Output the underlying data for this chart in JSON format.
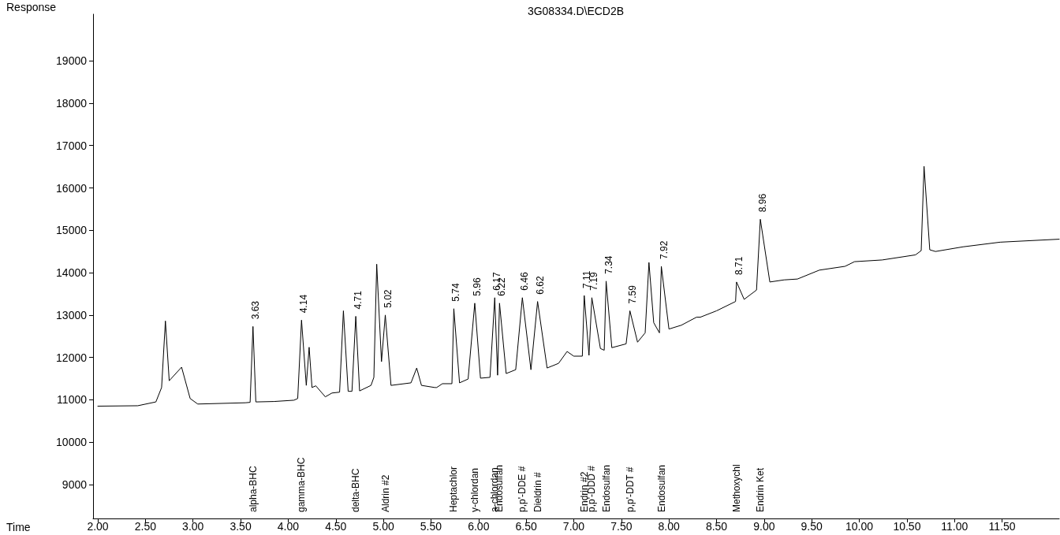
{
  "chart_data": {
    "type": "line",
    "title": "3G08334.D\\ECD2B",
    "xlabel": "Time",
    "ylabel": "Response",
    "x": [
      2.0,
      2.42,
      2.61,
      2.67,
      2.71,
      2.75,
      2.88,
      2.97,
      3.05,
      3.55,
      3.6,
      3.63,
      3.66,
      3.85,
      4.06,
      4.1,
      4.14,
      4.19,
      4.22,
      4.25,
      4.29,
      4.39,
      4.46,
      4.54,
      4.58,
      4.63,
      4.67,
      4.71,
      4.75,
      4.87,
      4.9,
      4.93,
      4.98,
      5.02,
      5.08,
      5.29,
      5.35,
      5.4,
      5.54,
      5.56,
      5.62,
      5.72,
      5.74,
      5.8,
      5.89,
      5.96,
      6.02,
      6.12,
      6.17,
      6.2,
      6.22,
      6.29,
      6.39,
      6.46,
      6.55,
      6.62,
      6.72,
      6.84,
      6.93,
      7.0,
      7.09,
      7.11,
      7.16,
      7.19,
      7.28,
      7.32,
      7.34,
      7.4,
      7.55,
      7.59,
      7.67,
      7.75,
      7.79,
      7.84,
      7.9,
      7.92,
      8.0,
      8.13,
      8.29,
      8.33,
      8.5,
      8.7,
      8.71,
      8.79,
      8.92,
      8.96,
      9.06,
      9.21,
      9.35,
      9.58,
      9.85,
      9.95,
      10.24,
      10.59,
      10.65,
      10.68,
      10.74,
      10.8,
      11.09,
      11.48,
      12.1
    ],
    "series": [
      {
        "color": "#000000",
        "values": [
          10850,
          10860,
          10950,
          11290,
          12860,
          11450,
          11770,
          11030,
          10900,
          10930,
          10940,
          12730,
          10950,
          10960,
          10990,
          11030,
          12880,
          11340,
          12240,
          11290,
          11330,
          11070,
          11160,
          11180,
          13100,
          11200,
          11200,
          12970,
          11210,
          11340,
          11530,
          14200,
          11900,
          13000,
          11340,
          11400,
          11750,
          11340,
          11290,
          11290,
          11380,
          11380,
          13150,
          11400,
          11490,
          13280,
          11510,
          11530,
          13410,
          11580,
          13280,
          11620,
          11710,
          13410,
          11710,
          13320,
          11750,
          11860,
          12140,
          12030,
          12030,
          13460,
          12050,
          13410,
          12210,
          12170,
          13800,
          12230,
          12320,
          13100,
          12360,
          12580,
          14240,
          12820,
          12580,
          14150,
          12670,
          12760,
          12950,
          12950,
          13100,
          13320,
          13780,
          13370,
          13590,
          15260,
          13780,
          13830,
          13850,
          14060,
          14150,
          14260,
          14300,
          14420,
          14520,
          16510,
          14540,
          14500,
          14610,
          14720,
          14790
        ]
      }
    ],
    "xlim": [
      1.95,
      12.1
    ],
    "xticks": [
      {
        "value": 2,
        "label": "2.00"
      },
      {
        "value": 2.5,
        "label": "2.50"
      },
      {
        "value": 3,
        "label": "3.00"
      },
      {
        "value": 3.5,
        "label": "3.50"
      },
      {
        "value": 4,
        "label": "4.00"
      },
      {
        "value": 4.5,
        "label": "4.50"
      },
      {
        "value": 5,
        "label": "5.00"
      },
      {
        "value": 5.5,
        "label": "5.50"
      },
      {
        "value": 6,
        "label": "6.00"
      },
      {
        "value": 6.5,
        "label": "6.50"
      },
      {
        "value": 7,
        "label": "7.00"
      },
      {
        "value": 7.5,
        "label": "7.50"
      },
      {
        "value": 8,
        "label": "8.00"
      },
      {
        "value": 8.5,
        "label": "8.50"
      },
      {
        "value": 9,
        "label": "9.00"
      },
      {
        "value": 9.5,
        "label": "9.50"
      },
      {
        "value": 10,
        "label": "10.00"
      },
      {
        "value": 10.5,
        "label": "10.50"
      },
      {
        "value": 11,
        "label": "11.00"
      },
      {
        "value": 11.5,
        "label": "11.50"
      }
    ],
    "ylim": [
      8200,
      20100
    ],
    "yticks": [
      9000,
      10000,
      11000,
      12000,
      13000,
      14000,
      15000,
      16000,
      17000,
      18000,
      19000
    ],
    "grid": false,
    "marker": "none",
    "line_style": "solid",
    "annotations": [
      {
        "text": "3.63",
        "x": 3.63,
        "y": 12730
      },
      {
        "text": "4.14",
        "x": 4.14,
        "y": 12880
      },
      {
        "text": "4.71",
        "x": 4.71,
        "y": 12970
      },
      {
        "text": "5.02",
        "x": 5.02,
        "y": 13000
      },
      {
        "text": "5.74",
        "x": 5.74,
        "y": 13150
      },
      {
        "text": "5.96",
        "x": 5.96,
        "y": 13280
      },
      {
        "text": "6.17",
        "x": 6.17,
        "y": 13410
      },
      {
        "text": "6.22",
        "x": 6.22,
        "y": 13280
      },
      {
        "text": "6.46",
        "x": 6.46,
        "y": 13410
      },
      {
        "text": "6.62",
        "x": 6.62,
        "y": 13320
      },
      {
        "text": "7.11",
        "x": 7.11,
        "y": 13460
      },
      {
        "text": "7.19",
        "x": 7.19,
        "y": 13410
      },
      {
        "text": "7.34",
        "x": 7.34,
        "y": 13800
      },
      {
        "text": "7.59",
        "x": 7.59,
        "y": 13100
      },
      {
        "text": "7.92",
        "x": 7.92,
        "y": 14150
      },
      {
        "text": "8.71",
        "x": 8.71,
        "y": 13780
      },
      {
        "text": "8.96",
        "x": 8.96,
        "y": 15260
      },
      "alpha-BHC",
      "gamma-BHC",
      "delta-BHC",
      "Aldrin #2",
      "Heptachlor",
      "y-chlordan",
      "a-chlordan",
      "Endosulfan",
      "p,p'-DDE #",
      "Dieldrin #",
      "Endrin #2",
      "p,p'-DDD #",
      "Endosulfan",
      "p,p'-DDT #",
      "Endosulfan",
      "Methoxychl",
      "Endrin Ket"
    ]
  }
}
